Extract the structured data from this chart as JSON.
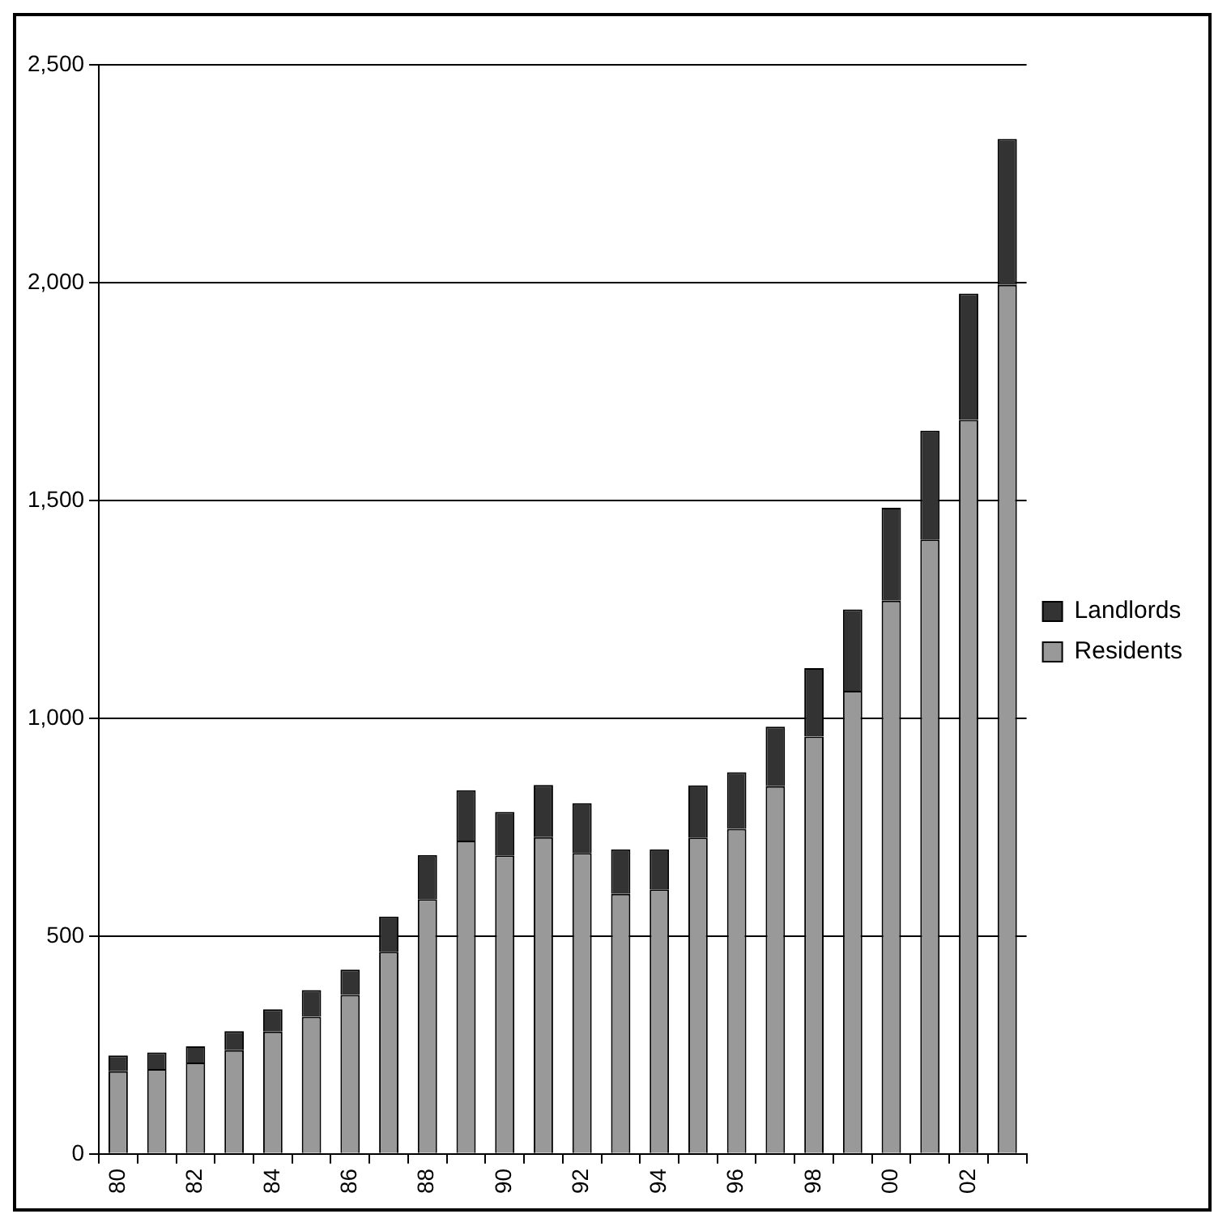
{
  "chart_data": {
    "type": "bar",
    "stacked": true,
    "categories": [
      "80",
      null,
      "82",
      null,
      "84",
      null,
      "86",
      null,
      "88",
      null,
      "90",
      null,
      "92",
      null,
      "94",
      null,
      "96",
      null,
      "98",
      null,
      "00",
      null,
      "02",
      null
    ],
    "series": [
      {
        "name": "Residents",
        "color": "#999999",
        "values": [
          190,
          195,
          210,
          238,
          281,
          315,
          365,
          464,
          585,
          719,
          685,
          727,
          691,
          597,
          607,
          726,
          746,
          844,
          958,
          1063,
          1270,
          1410,
          1685,
          1995
        ]
      },
      {
        "name": "Landlords",
        "color": "#333333",
        "values": [
          36,
          38,
          37,
          44,
          51,
          61,
          58,
          81,
          101,
          116,
          100,
          120,
          114,
          102,
          92,
          120,
          130,
          137,
          157,
          187,
          213,
          250,
          290,
          335
        ]
      }
    ],
    "ylim": [
      0,
      2500
    ],
    "yticks": [
      0,
      500,
      {
        "value": 1000,
        "label": "1,000"
      },
      {
        "value": 1500,
        "label": "1,500"
      },
      {
        "value": 2000,
        "label": "2,000"
      },
      {
        "value": 2500,
        "label": "2,500"
      }
    ],
    "grid": "y",
    "legend": "right"
  }
}
